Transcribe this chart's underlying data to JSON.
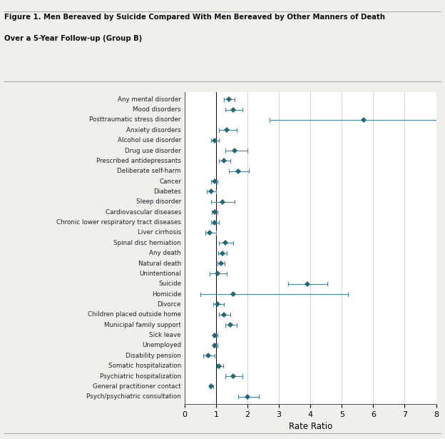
{
  "title_line1": "Figure 1. Men Bereaved by Suicide Compared With Men Bereaved by Other Manners of Death",
  "title_line2": "Over a 5-Year Follow-up (Group B)",
  "xlabel": "Rate Ratio",
  "xlim": [
    0,
    8
  ],
  "xticks": [
    0,
    1,
    2,
    3,
    4,
    5,
    6,
    7,
    8
  ],
  "point_color": "#1d6978",
  "ci_color": "#4d8a97",
  "background_color": "#f0efea",
  "plot_bg_color": "#ffffff",
  "categories": [
    "Any mental disorder",
    "Mood disorders",
    "Posttraumatic stress disorder",
    "Anxiety disorders",
    "Alcohol use disorder",
    "Drug use disorder",
    "Prescribed antidepressants",
    "Deliberate self-harm",
    "Cancer",
    "Diabetes",
    "Sleep disorder",
    "Cardiovascular diseases",
    "Chronic lower respiratory tract diseases",
    "Liver cirrhosis",
    "Spinal disc herniation",
    "Any death",
    "Natural death",
    "Unintentional",
    "Suicide",
    "Homicide",
    "Divorce",
    "Children placed outside home",
    "Municipal family support",
    "Sick leave",
    "Unemployed",
    "Disability pension",
    "Somatic hospitalization",
    "Psychiatric hospitalization",
    "General practitioner contact",
    "Psych/psychiatric consultation"
  ],
  "point_estimates": [
    1.4,
    1.55,
    5.7,
    1.35,
    0.95,
    1.6,
    1.25,
    1.7,
    0.95,
    0.85,
    1.2,
    0.95,
    0.95,
    0.8,
    1.3,
    1.2,
    1.15,
    1.05,
    3.9,
    1.55,
    1.05,
    1.25,
    1.45,
    0.95,
    0.95,
    0.75,
    1.1,
    1.55,
    0.85,
    2.0
  ],
  "ci_lower": [
    1.25,
    1.3,
    2.7,
    1.1,
    0.85,
    1.3,
    1.1,
    1.4,
    0.85,
    0.7,
    0.85,
    0.87,
    0.85,
    0.65,
    1.1,
    1.07,
    1.05,
    0.8,
    3.3,
    0.5,
    0.9,
    1.1,
    1.3,
    0.9,
    0.9,
    0.6,
    1.02,
    1.3,
    0.8,
    1.7
  ],
  "ci_upper": [
    1.6,
    1.85,
    8.0,
    1.65,
    1.08,
    2.0,
    1.45,
    2.05,
    1.05,
    1.0,
    1.6,
    1.05,
    1.08,
    1.0,
    1.55,
    1.35,
    1.28,
    1.35,
    4.55,
    5.2,
    1.25,
    1.45,
    1.65,
    1.04,
    1.04,
    0.95,
    1.22,
    1.85,
    0.91,
    2.35
  ]
}
